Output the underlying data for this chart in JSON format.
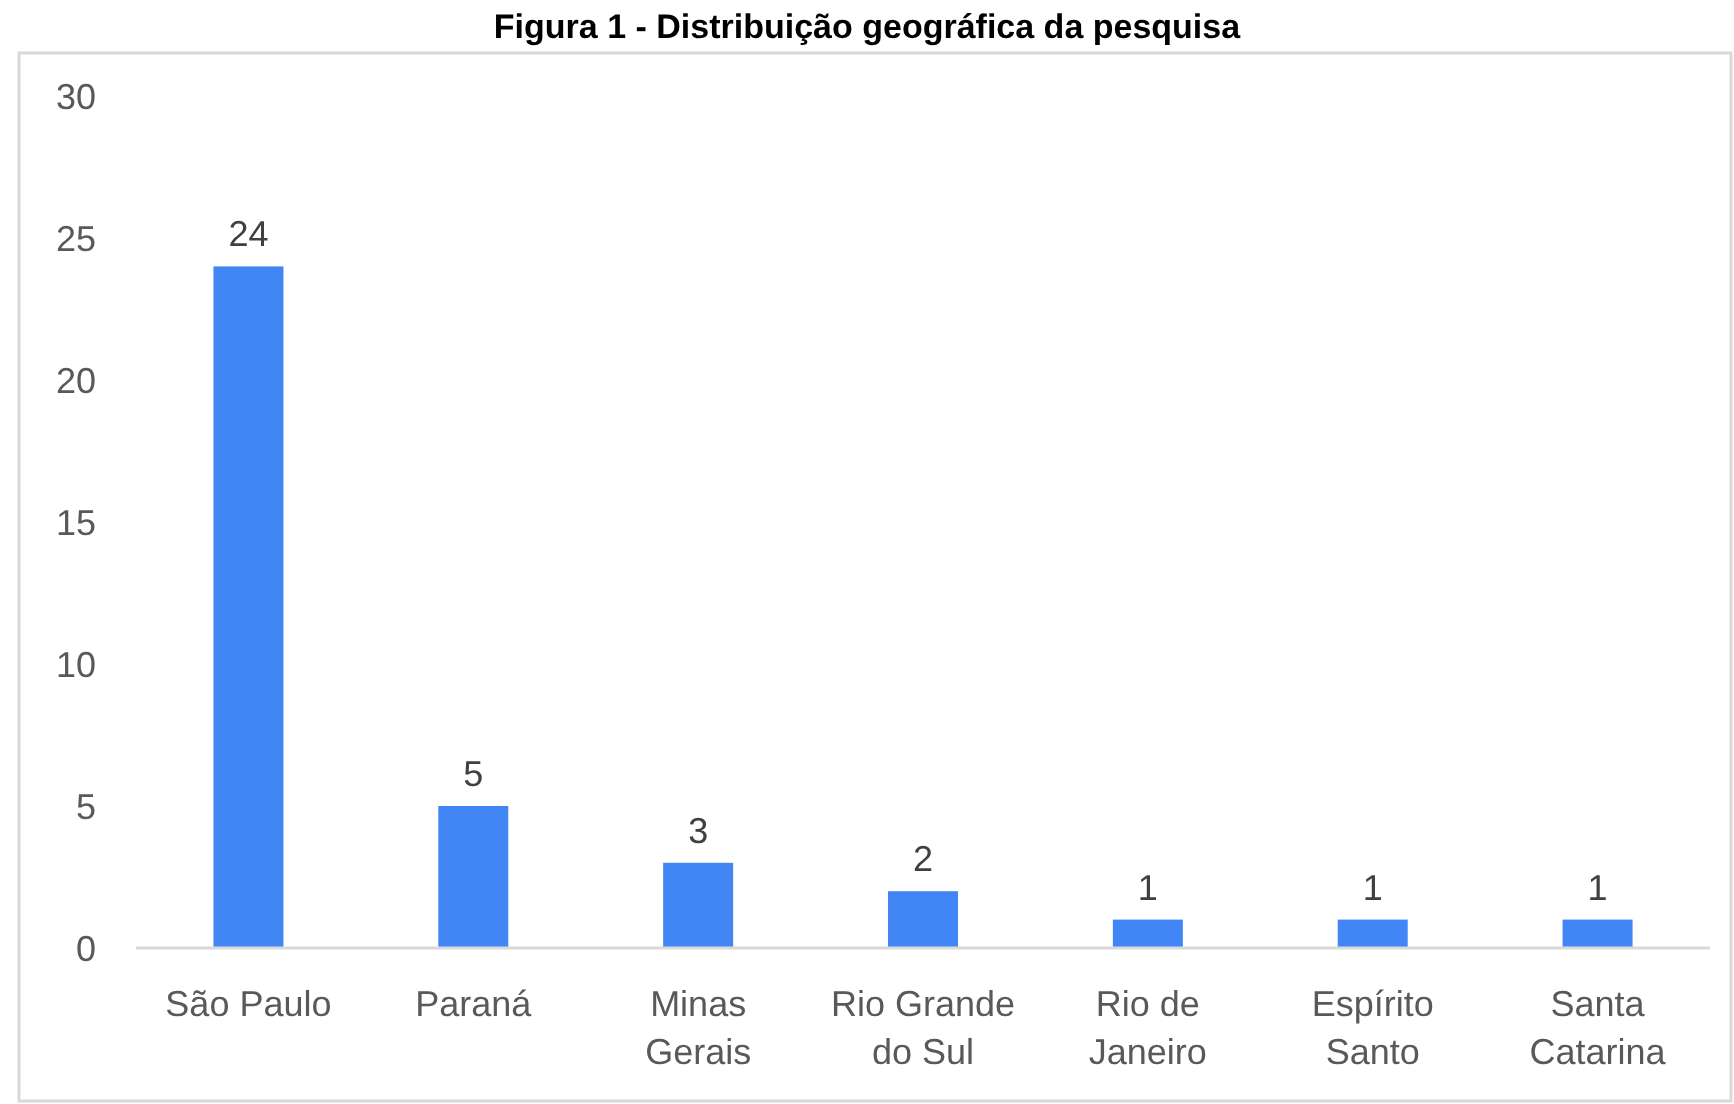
{
  "chart_data": {
    "type": "bar",
    "title": "Figura 1 - Distribuição geográfica da pesquisa",
    "categories": [
      "São Paulo",
      "Paraná",
      "Minas Gerais",
      "Rio Grande do Sul",
      "Rio de Janeiro",
      "Espírito Santo",
      "Santa Catarina"
    ],
    "values": [
      24,
      5,
      3,
      2,
      1,
      1,
      1
    ],
    "color": "#4285f4",
    "ylim": [
      0,
      30
    ],
    "yticks": [
      0,
      5,
      10,
      15,
      20,
      25,
      30
    ],
    "grid": false,
    "data_labels": true
  }
}
